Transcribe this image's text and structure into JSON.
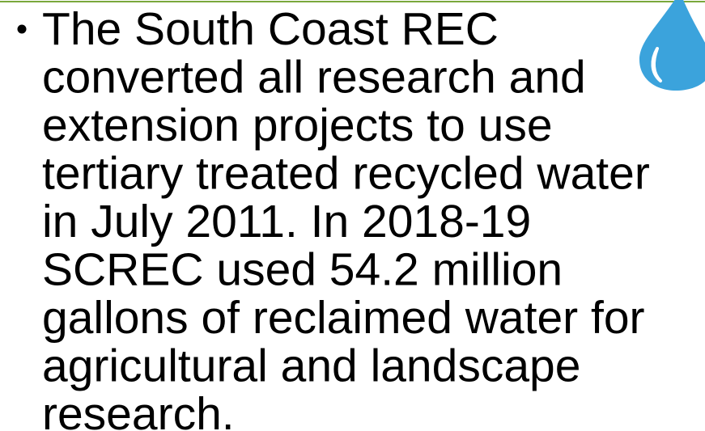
{
  "slide": {
    "bullet": {
      "lines": [
        "The South Coast REC",
        "converted all research and",
        "extension projects to use",
        "tertiary treated recycled water",
        "in July 2011. In 2018-19",
        "SCREC used 54.2 million",
        "gallons of reclaimed water for",
        "agricultural and landscape",
        "research."
      ]
    }
  }
}
